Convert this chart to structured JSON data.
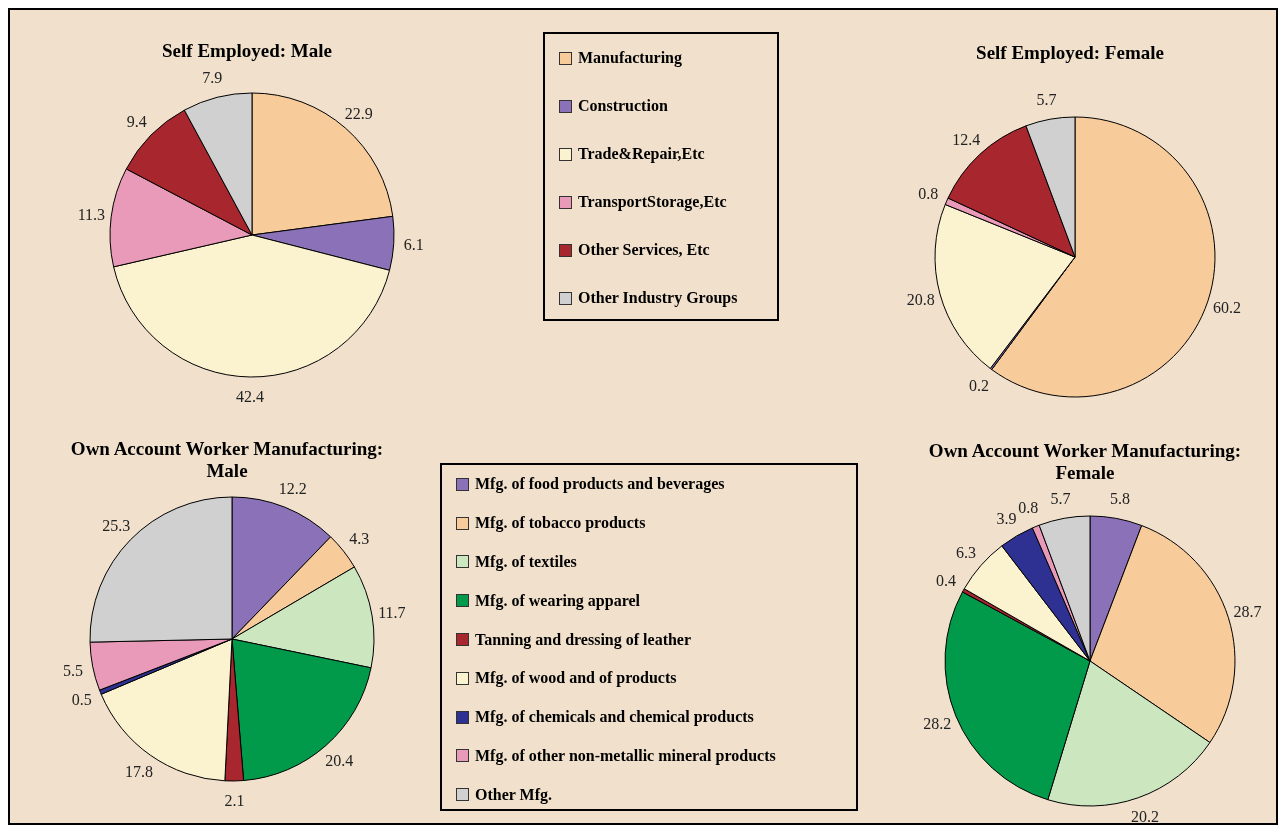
{
  "chart_data": [
    {
      "type": "pie",
      "title": "Self Employed: Male",
      "categories": [
        "Manufacturing",
        "Construction",
        "Trade&Repair,Etc",
        "TransportStorage,Etc",
        "Other Services, Etc",
        "Other Industry Groups"
      ],
      "values": [
        22.9,
        6.1,
        42.4,
        11.3,
        9.4,
        7.9
      ],
      "colors": [
        "#f8cb9b",
        "#8b72b8",
        "#fbf3d0",
        "#e99ab8",
        "#a8272f",
        "#d0d0d0"
      ],
      "data_labels": true,
      "legend": "right"
    },
    {
      "type": "pie",
      "title": "Self Employed: Female",
      "categories": [
        null,
        null,
        null,
        null,
        null,
        null
      ],
      "values": [
        60.2,
        0.2,
        20.8,
        0.8,
        12.4,
        5.7
      ],
      "colors": [
        "#f8cb9b",
        "#8b72b8",
        "#fbf3d0",
        "#e99ab8",
        "#a8272f",
        "#d0d0d0"
      ],
      "data_labels": true
    },
    {
      "type": "pie",
      "title": "Own Account Worker Manufacturing: Male",
      "categories": [
        "Mfg. of food products and beverages",
        "Mfg. of tobacco products",
        "Mfg. of textiles",
        "Mfg. of wearing apparel",
        "Tanning and dressing of leather",
        "Mfg. of wood and of products",
        "Mfg. of chemicals and chemical products",
        "Mfg. of other non-metallic mineral products",
        "Other Mfg."
      ],
      "values": [
        12.2,
        4.3,
        11.7,
        20.4,
        2.1,
        17.8,
        0.5,
        5.5,
        25.3
      ],
      "colors": [
        "#8b72b8",
        "#f8cb9b",
        "#cce6bf",
        "#009a4a",
        "#a8272f",
        "#fbf3d0",
        "#2e3192",
        "#e99ab8",
        "#d0d0d0"
      ],
      "data_labels": true,
      "legend": "right"
    },
    {
      "type": "pie",
      "title": "Own Account Worker Manufacturing: Female",
      "categories": [
        null,
        null,
        null,
        null,
        null,
        null,
        null,
        null,
        null
      ],
      "values": [
        5.8,
        28.7,
        20.2,
        28.2,
        0.4,
        6.3,
        3.9,
        0.8,
        5.7
      ],
      "colors": [
        "#8b72b8",
        "#f8cb9b",
        "#cce6bf",
        "#009a4a",
        "#a8272f",
        "#fbf3d0",
        "#2e3192",
        "#e99ab8",
        "#d0d0d0"
      ],
      "data_labels": true
    }
  ]
}
